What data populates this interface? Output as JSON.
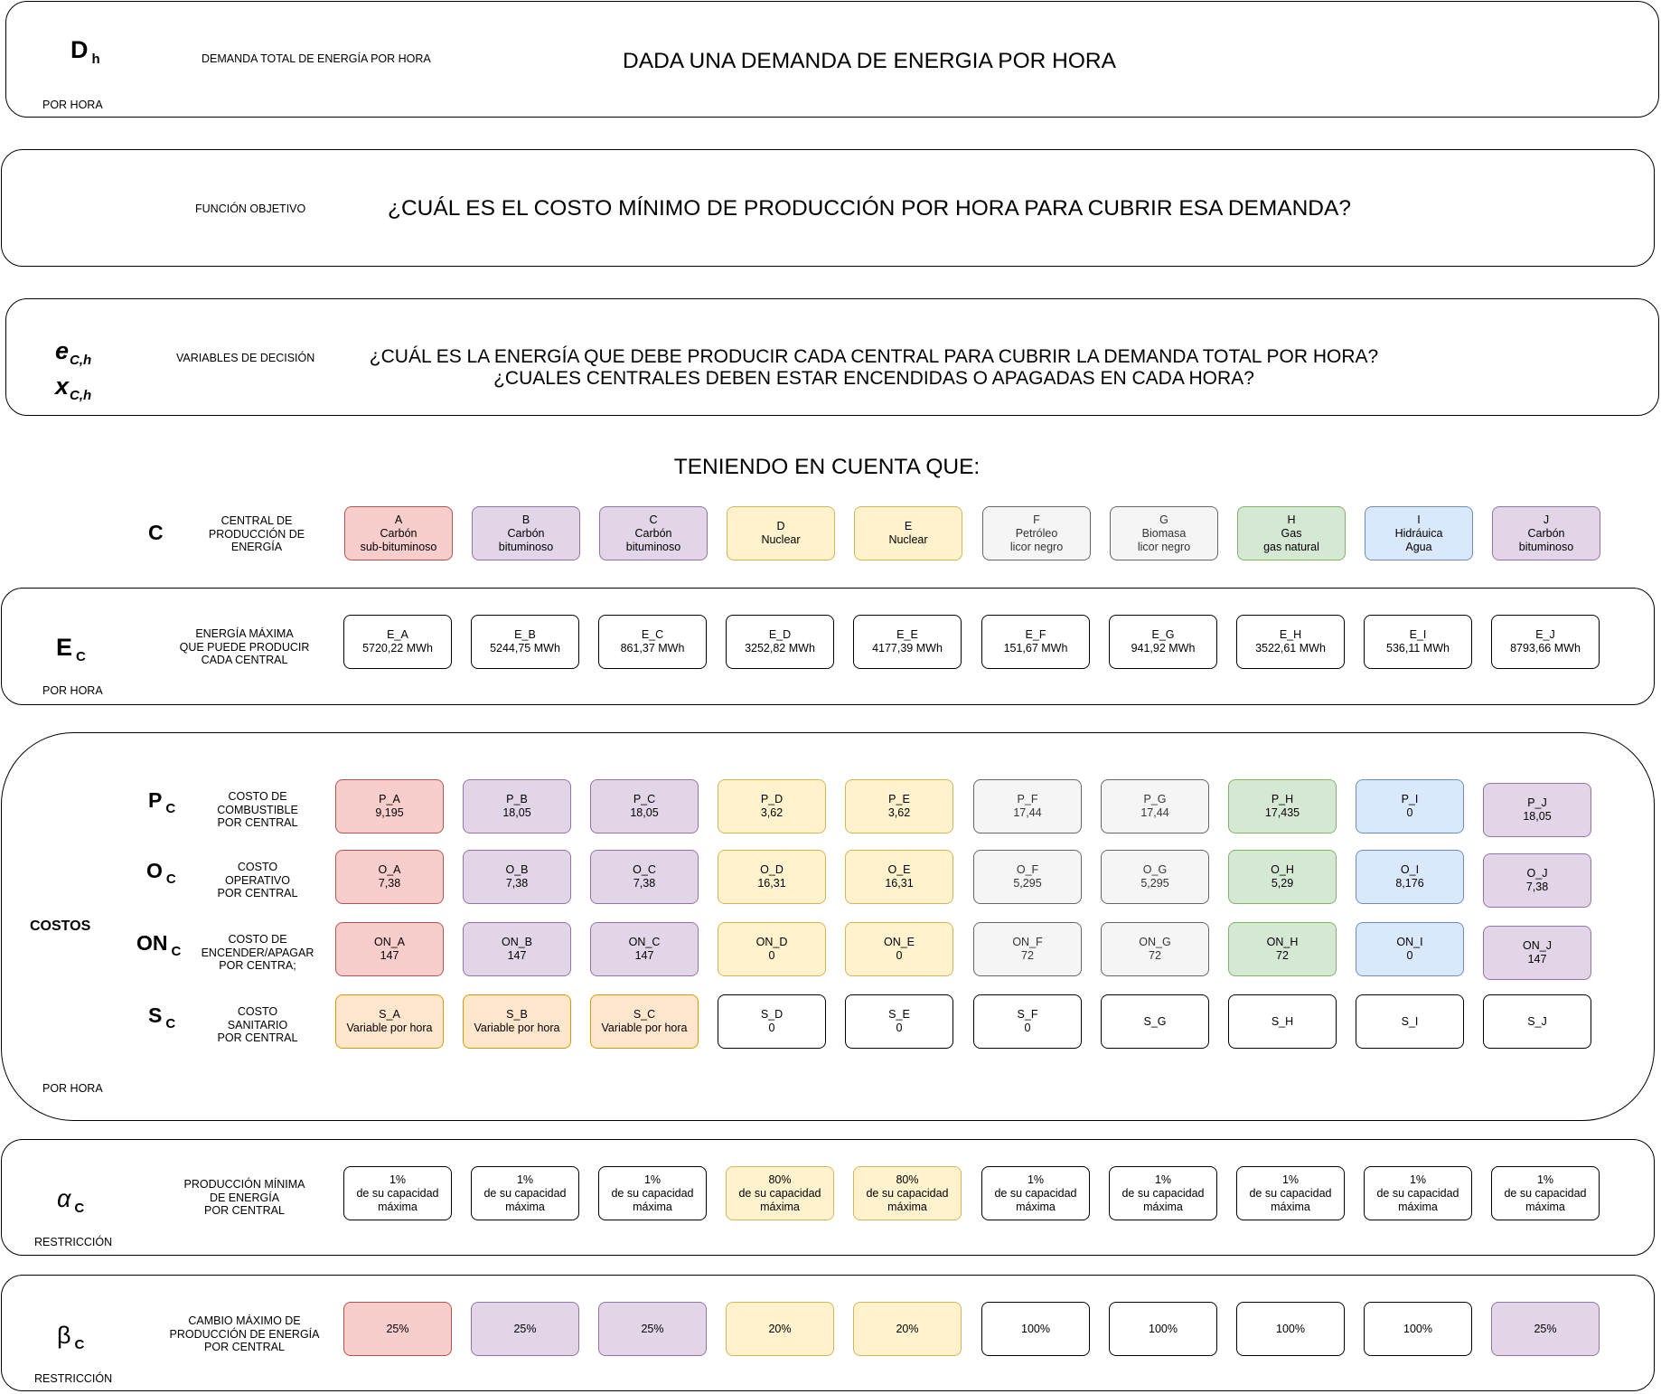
{
  "demand": {
    "symbol": "D",
    "sub": "h",
    "label": "DEMANDA TOTAL DE ENERGÍA POR HORA",
    "title": "DADA UNA DEMANDA DE ENERGIA POR HORA",
    "footer": "POR HORA"
  },
  "objective": {
    "label": "FUNCIÓN OBJETIVO",
    "title": "¿CUÁL ES EL COSTO MÍNIMO DE PRODUCCIÓN POR HORA PARA CUBRIR ESA DEMANDA?"
  },
  "decision": {
    "symbol1": "e",
    "sub1": "C,h",
    "symbol2": "x",
    "sub2": "C,h",
    "label": "VARIABLES DE DECISIÓN",
    "line1": "¿CUÁL ES LA ENERGÍA QUE DEBE PRODUCIR CADA CENTRAL PARA CUBRIR LA DEMANDA TOTAL POR HORA?",
    "line2": "¿CUALES CENTRALES DEBEN ESTAR ENCENDIDAS O APAGADAS EN CADA HORA?"
  },
  "considering": "TENIENDO EN CUENTA QUE:",
  "colors": {
    "red": "#f8cecc",
    "purple": "#e1d5e7",
    "yellow": "#fff2cc",
    "gray": "#f5f5f5",
    "green": "#d5e8d4",
    "blue": "#dae8fc",
    "orange": "#ffe6cc",
    "white": "#ffffff"
  },
  "centrals": {
    "symbol": "C",
    "label": "CENTRAL DE\nPRODUCCIÓN DE\nENERGÍA",
    "items": [
      {
        "id": "A",
        "l1": "Carbón",
        "l2": "sub-bituminoso",
        "color": "red"
      },
      {
        "id": "B",
        "l1": "Carbón",
        "l2": "bituminoso",
        "color": "purple"
      },
      {
        "id": "C",
        "l1": "Carbón",
        "l2": "bituminoso",
        "color": "purple"
      },
      {
        "id": "D",
        "l1": "Nuclear",
        "l2": "",
        "color": "yellow"
      },
      {
        "id": "E",
        "l1": "Nuclear",
        "l2": "",
        "color": "yellow"
      },
      {
        "id": "F",
        "l1": "Petróleo",
        "l2": "licor negro",
        "color": "gray"
      },
      {
        "id": "G",
        "l1": "Biomasa",
        "l2": "licor negro",
        "color": "gray"
      },
      {
        "id": "H",
        "l1": "Gas",
        "l2": "gas natural",
        "color": "green"
      },
      {
        "id": "I",
        "l1": "Hidráuica",
        "l2": "Agua",
        "color": "blue"
      },
      {
        "id": "J",
        "l1": "Carbón",
        "l2": "bituminoso",
        "color": "purple"
      }
    ]
  },
  "energy": {
    "symbol": "E",
    "sub": "C",
    "label": "ENERGÍA MÁXIMA\nQUE PUEDE PRODUCIR\nCADA CENTRAL",
    "footer": "POR HORA",
    "items": [
      {
        "name": "E_A",
        "value": "5720,22 MWh",
        "color": "white"
      },
      {
        "name": "E_B",
        "value": "5244,75 MWh",
        "color": "white"
      },
      {
        "name": "E_C",
        "value": "861,37 MWh",
        "color": "white"
      },
      {
        "name": "E_D",
        "value": "3252,82 MWh",
        "color": "white"
      },
      {
        "name": "E_E",
        "value": "4177,39 MWh",
        "color": "white"
      },
      {
        "name": "E_F",
        "value": "151,67 MWh",
        "color": "white"
      },
      {
        "name": "E_G",
        "value": "941,92 MWh",
        "color": "white"
      },
      {
        "name": "E_H",
        "value": "3522,61 MWh",
        "color": "white"
      },
      {
        "name": "E_I",
        "value": "536,11 MWh",
        "color": "white"
      },
      {
        "name": "E_J",
        "value": "8793,66 MWh",
        "color": "white"
      }
    ]
  },
  "costs": {
    "title": "COSTOS",
    "footer": "POR HORA",
    "rows": [
      {
        "symbol": "P",
        "sub": "C",
        "label": "COSTO DE\nCOMBUSTIBLE\nPOR CENTRAL",
        "items": [
          {
            "name": "P_A",
            "value": "9,195",
            "color": "red"
          },
          {
            "name": "P_B",
            "value": "18,05",
            "color": "purple"
          },
          {
            "name": "P_C",
            "value": "18,05",
            "color": "purple"
          },
          {
            "name": "P_D",
            "value": "3,62",
            "color": "yellow"
          },
          {
            "name": "P_E",
            "value": "3,62",
            "color": "yellow"
          },
          {
            "name": "P_F",
            "value": "17,44",
            "color": "gray"
          },
          {
            "name": "P_G",
            "value": "17,44",
            "color": "gray"
          },
          {
            "name": "P_H",
            "value": "17,435",
            "color": "green"
          },
          {
            "name": "P_I",
            "value": "0",
            "color": "blue"
          },
          {
            "name": "P_J",
            "value": "18,05",
            "color": "purple"
          }
        ]
      },
      {
        "symbol": "O",
        "sub": "C",
        "label": "COSTO\nOPERATIVO\nPOR CENTRAL",
        "items": [
          {
            "name": "O_A",
            "value": "7,38",
            "color": "red"
          },
          {
            "name": "O_B",
            "value": "7,38",
            "color": "purple"
          },
          {
            "name": "O_C",
            "value": "7,38",
            "color": "purple"
          },
          {
            "name": "O_D",
            "value": "16,31",
            "color": "yellow"
          },
          {
            "name": "O_E",
            "value": "16,31",
            "color": "yellow"
          },
          {
            "name": "O_F",
            "value": "5,295",
            "color": "gray"
          },
          {
            "name": "O_G",
            "value": "5,295",
            "color": "gray"
          },
          {
            "name": "O_H",
            "value": "5,29",
            "color": "green"
          },
          {
            "name": "O_I",
            "value": "8,176",
            "color": "blue"
          },
          {
            "name": "O_J",
            "value": "7,38",
            "color": "purple"
          }
        ]
      },
      {
        "symbol": "ON",
        "sub": "C",
        "label": "COSTO DE\nENCENDER/APAGAR\nPOR CENTRA;",
        "items": [
          {
            "name": "ON_A",
            "value": "147",
            "color": "red"
          },
          {
            "name": "ON_B",
            "value": "147",
            "color": "purple"
          },
          {
            "name": "ON_C",
            "value": "147",
            "color": "purple"
          },
          {
            "name": "ON_D",
            "value": "0",
            "color": "yellow"
          },
          {
            "name": "ON_E",
            "value": "0",
            "color": "yellow"
          },
          {
            "name": "ON_F",
            "value": "72",
            "color": "gray"
          },
          {
            "name": "ON_G",
            "value": "72",
            "color": "gray"
          },
          {
            "name": "ON_H",
            "value": "72",
            "color": "green"
          },
          {
            "name": "ON_I",
            "value": "0",
            "color": "blue"
          },
          {
            "name": "ON_J",
            "value": "147",
            "color": "purple"
          }
        ]
      },
      {
        "symbol": "S",
        "sub": "C",
        "label": "COSTO\nSANITARIO\nPOR CENTRAL",
        "items": [
          {
            "name": "S_A",
            "value": "Variable por hora",
            "color": "orange"
          },
          {
            "name": "S_B",
            "value": "Variable por hora",
            "color": "orange"
          },
          {
            "name": "S_C",
            "value": "Variable por hora",
            "color": "orange"
          },
          {
            "name": "S_D",
            "value": "0",
            "color": "white"
          },
          {
            "name": "S_E",
            "value": "0",
            "color": "white"
          },
          {
            "name": "S_F",
            "value": "0",
            "color": "white"
          },
          {
            "name": "S_G",
            "value": "",
            "color": "white"
          },
          {
            "name": "S_H",
            "value": "",
            "color": "white"
          },
          {
            "name": "S_I",
            "value": "",
            "color": "white"
          },
          {
            "name": "S_J",
            "value": "",
            "color": "white"
          }
        ]
      }
    ]
  },
  "alpha": {
    "symbol": "α",
    "sub": "C",
    "label": "PRODUCCIÓN MÍNIMA\nDE ENERGÍA\nPOR CENTRAL",
    "footer": "RESTRICCIÓN",
    "items": [
      {
        "pct": "1%",
        "l2": "de su capacidad",
        "l3": "máxima",
        "color": "white"
      },
      {
        "pct": "1%",
        "l2": "de su capacidad",
        "l3": "máxima",
        "color": "white"
      },
      {
        "pct": "1%",
        "l2": "de su capacidad",
        "l3": "máxima",
        "color": "white"
      },
      {
        "pct": "80%",
        "l2": "de su capacidad",
        "l3": "máxima",
        "color": "yellow"
      },
      {
        "pct": "80%",
        "l2": "de su capacidad",
        "l3": "máxima",
        "color": "yellow"
      },
      {
        "pct": "1%",
        "l2": "de su capacidad",
        "l3": "máxima",
        "color": "white"
      },
      {
        "pct": "1%",
        "l2": "de su capacidad",
        "l3": "máxima",
        "color": "white"
      },
      {
        "pct": "1%",
        "l2": "de su capacidad",
        "l3": "máxima",
        "color": "white"
      },
      {
        "pct": "1%",
        "l2": "de su capacidad",
        "l3": "máxima",
        "color": "white"
      },
      {
        "pct": "1%",
        "l2": "de su capacidad",
        "l3": "máxima",
        "color": "white"
      }
    ]
  },
  "beta": {
    "symbol": "β",
    "sub": "C",
    "label": "CAMBIO MÁXIMO DE\nPRODUCCIÓN DE ENERGÍA\nPOR CENTRAL",
    "footer": "RESTRICCIÓN",
    "items": [
      {
        "value": "25%",
        "color": "red"
      },
      {
        "value": "25%",
        "color": "purple"
      },
      {
        "value": "25%",
        "color": "purple"
      },
      {
        "value": "20%",
        "color": "yellow"
      },
      {
        "value": "20%",
        "color": "yellow"
      },
      {
        "value": "100%",
        "color": "white"
      },
      {
        "value": "100%",
        "color": "white"
      },
      {
        "value": "100%",
        "color": "white"
      },
      {
        "value": "100%",
        "color": "white"
      },
      {
        "value": "25%",
        "color": "purple"
      }
    ]
  }
}
